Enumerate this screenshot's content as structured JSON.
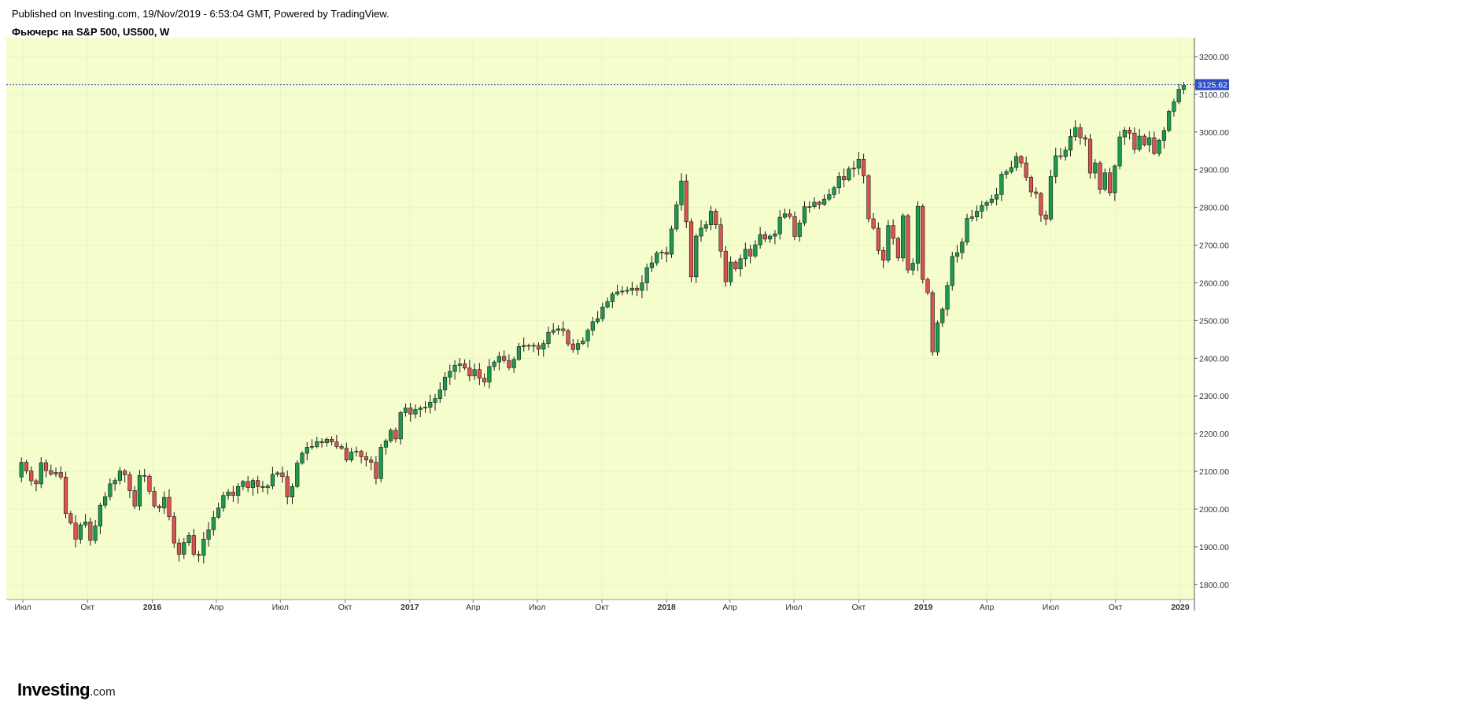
{
  "header": {
    "published": "Published on Investing.com, 19/Nov/2019 - 6:53:04 GMT, Powered by TradingView.",
    "instrument": "Фьючерс на S&P 500, US500, W"
  },
  "logo": {
    "brand": "Investing",
    "suffix": ".com"
  },
  "colors": {
    "plot_bg": "#f5fdcc",
    "up": "#1c9a4e",
    "down": "#d9534f",
    "candle_border": "#1a1a1a",
    "last_price": "#2f4fc8",
    "grid": "#e9f3c8"
  },
  "chart_data": {
    "type": "candlestick",
    "interval": "W",
    "y_axis": {
      "ylim": [
        1760,
        3250
      ],
      "ticks": [
        "1800.00",
        "1900.00",
        "2000.00",
        "2100.00",
        "2200.00",
        "2300.00",
        "2400.00",
        "2500.00",
        "2600.00",
        "2700.00",
        "2800.00",
        "2900.00",
        "3000.00",
        "3100.00",
        "3200.00"
      ],
      "position": "right"
    },
    "x_axis": {
      "ticks": [
        {
          "label": "Июл",
          "date": "2015-07"
        },
        {
          "label": "Окт",
          "date": "2015-10"
        },
        {
          "label": "2016",
          "date": "2016-01"
        },
        {
          "label": "Апр",
          "date": "2016-04"
        },
        {
          "label": "Июл",
          "date": "2016-07"
        },
        {
          "label": "Окт",
          "date": "2016-10"
        },
        {
          "label": "2017",
          "date": "2017-01"
        },
        {
          "label": "Апр",
          "date": "2017-04"
        },
        {
          "label": "Июл",
          "date": "2017-07"
        },
        {
          "label": "Окт",
          "date": "2017-10"
        },
        {
          "label": "2018",
          "date": "2018-01"
        },
        {
          "label": "Апр",
          "date": "2018-04"
        },
        {
          "label": "Июл",
          "date": "2018-07"
        },
        {
          "label": "Окт",
          "date": "2018-10"
        },
        {
          "label": "2019",
          "date": "2019-01"
        },
        {
          "label": "Апр",
          "date": "2019-04"
        },
        {
          "label": "Июл",
          "date": "2019-07"
        },
        {
          "label": "Окт",
          "date": "2019-10"
        },
        {
          "label": "2020",
          "date": "2020-01"
        }
      ]
    },
    "last_price": "3125.62",
    "series_close": [
      2124,
      2101,
      2075,
      2067,
      2123,
      2102,
      2093,
      2097,
      2085,
      1988,
      1963,
      1920,
      1958,
      1966,
      1917,
      1955,
      2010,
      2033,
      2067,
      2076,
      2101,
      2091,
      2049,
      2008,
      2089,
      2087,
      2047,
      2008,
      2003,
      2031,
      1980,
      1910,
      1880,
      1911,
      1930,
      1880,
      1877,
      1920,
      1945,
      1978,
      2003,
      2036,
      2045,
      2036,
      2060,
      2073,
      2057,
      2076,
      2060,
      2057,
      2061,
      2092,
      2096,
      2086,
      2032,
      2060,
      2122,
      2148,
      2164,
      2166,
      2179,
      2176,
      2185,
      2178,
      2166,
      2161,
      2130,
      2151,
      2153,
      2139,
      2130,
      2124,
      2081,
      2164,
      2181,
      2209,
      2186,
      2256,
      2268,
      2252,
      2264,
      2268,
      2270,
      2283,
      2293,
      2316,
      2350,
      2365,
      2381,
      2385,
      2374,
      2353,
      2370,
      2347,
      2337,
      2378,
      2390,
      2405,
      2394,
      2375,
      2397,
      2431,
      2434,
      2432,
      2434,
      2424,
      2439,
      2469,
      2474,
      2478,
      2473,
      2438,
      2423,
      2439,
      2446,
      2474,
      2497,
      2505,
      2536,
      2550,
      2570,
      2576,
      2578,
      2580,
      2586,
      2580,
      2600,
      2640,
      2653,
      2679,
      2681,
      2676,
      2743,
      2807,
      2870,
      2762,
      2616,
      2724,
      2745,
      2754,
      2790,
      2754,
      2684,
      2603,
      2655,
      2637,
      2664,
      2689,
      2671,
      2701,
      2728,
      2716,
      2724,
      2730,
      2774,
      2783,
      2776,
      2723,
      2759,
      2802,
      2802,
      2814,
      2808,
      2822,
      2834,
      2852,
      2882,
      2873,
      2902,
      2904,
      2928,
      2884,
      2770,
      2745,
      2686,
      2660,
      2752,
      2718,
      2666,
      2778,
      2634,
      2652,
      2803,
      2609,
      2574,
      2417,
      2494,
      2530,
      2593,
      2670,
      2680,
      2708,
      2771,
      2775,
      2790,
      2805,
      2813,
      2822,
      2834,
      2888,
      2895,
      2906,
      2935,
      2918,
      2880,
      2841,
      2837,
      2780,
      2769,
      2882,
      2937,
      2935,
      2952,
      2988,
      3012,
      2985,
      2981,
      2891,
      2918,
      2848,
      2892,
      2839,
      2910,
      2987,
      3005,
      2997,
      2954,
      2989,
      2966,
      2985,
      2943,
      2978,
      3004,
      3055,
      3080,
      3113,
      3124
    ]
  }
}
